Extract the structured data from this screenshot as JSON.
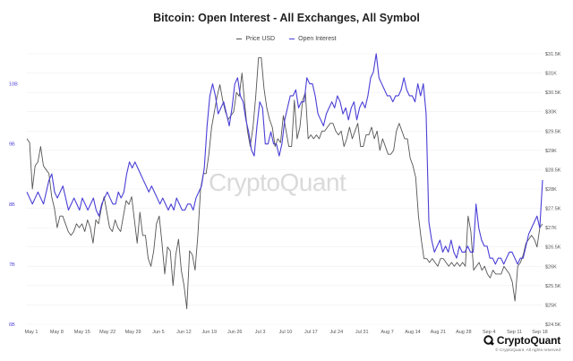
{
  "header": {
    "title": "Bitcoin: Open Interest - All Exchanges, All Symbol"
  },
  "legend": {
    "items": [
      {
        "label": "Price USD",
        "color": "#555555"
      },
      {
        "label": "Open Interest",
        "color": "#4a3fd6"
      }
    ]
  },
  "watermark": "CryptoQuant",
  "brand": {
    "name": "CryptoQuant",
    "copyright": "© CryptoQuant. All rights reserved"
  },
  "chart_data": {
    "type": "line",
    "title": "Bitcoin: Open Interest - All Exchanges, All Symbol",
    "x_ticks": [
      "May 1",
      "May 8",
      "May 15",
      "May 22",
      "May 29",
      "Jun 5",
      "Jun 12",
      "Jun 19",
      "Jun 26",
      "Jul 3",
      "Jul 10",
      "Jul 17",
      "Jul 24",
      "Jul 31",
      "Aug 7",
      "Aug 14",
      "Aug 21",
      "Aug 28",
      "Sep 4",
      "Sep 11",
      "Sep 18"
    ],
    "left_axis": {
      "ticks": [
        "6B",
        "7B",
        "8B",
        "9B",
        "10B"
      ],
      "range": [
        6,
        10.5
      ],
      "color": "#4a3fd6"
    },
    "right_axis": {
      "ticks": [
        "$24.5K",
        "$25K",
        "$25.5K",
        "$26K",
        "$26.5K",
        "$27K",
        "$27.5K",
        "$28K",
        "$28.5K",
        "$29K",
        "$29.5K",
        "$30K",
        "$30.5K",
        "$31K",
        "$31.5K"
      ],
      "range": [
        24.5,
        31.5
      ],
      "color": "#555555"
    },
    "series": [
      {
        "name": "Price USD",
        "axis": "right",
        "color": "#555555",
        "y": [
          29.3,
          29.2,
          28.0,
          28.6,
          28.7,
          29.1,
          28.6,
          28.5,
          28.4,
          27.8,
          27.5,
          27.0,
          27.3,
          27.3,
          27.1,
          26.9,
          26.8,
          26.9,
          27.1,
          27.0,
          27.1,
          26.9,
          27.2,
          27.0,
          26.6,
          27.2,
          27.1,
          27.5,
          27.8,
          27.4,
          27.0,
          26.9,
          27.2,
          27.0,
          26.9,
          27.3,
          27.7,
          27.6,
          27.8,
          27.2,
          26.6,
          27.4,
          26.8,
          26.8,
          26.2,
          26.0,
          26.4,
          27.1,
          27.3,
          26.6,
          25.8,
          26.5,
          26.4,
          25.5,
          26.3,
          26.7,
          25.9,
          25.5,
          24.9,
          26.4,
          26.3,
          25.9,
          26.8,
          28.0,
          28.4,
          28.4,
          28.9,
          29.6,
          30.0,
          30.4,
          30.7,
          30.3,
          30.0,
          29.8,
          29.9,
          30.0,
          30.5,
          30.4,
          31.0,
          30.2,
          29.5,
          29.1,
          29.6,
          30.4,
          31.4,
          31.4,
          30.6,
          30.1,
          29.8,
          29.6,
          29.1,
          29.3,
          29.2,
          29.9,
          29.5,
          29.1,
          29.1,
          30.3,
          29.3,
          29.6,
          30.3,
          30.5,
          29.3,
          29.4,
          29.3,
          29.4,
          29.3,
          29.5,
          29.5,
          29.6,
          29.7,
          29.7,
          29.5,
          29.4,
          29.5,
          29.1,
          29.3,
          29.6,
          29.3,
          29.5,
          29.7,
          29.1,
          29.1,
          29.4,
          29.4,
          29.6,
          29.3,
          29.5,
          29.0,
          29.3,
          29.1,
          28.9,
          28.9,
          29.0,
          29.5,
          29.7,
          29.5,
          29.3,
          29.3,
          28.8,
          28.6,
          28.3,
          27.3,
          26.7,
          26.2,
          26.2,
          26.1,
          26.2,
          26.1,
          26.0,
          26.2,
          26.2,
          26.1,
          26.0,
          26.1,
          26.0,
          26.1,
          26.0,
          26.1,
          26.0,
          27.3,
          26.9,
          25.9,
          26.0,
          26.1,
          25.9,
          26.0,
          25.8,
          25.7,
          25.9,
          25.8,
          25.8,
          25.8,
          26.0,
          25.9,
          25.8,
          25.6,
          25.1,
          26.0,
          26.1,
          26.3,
          26.6,
          26.7,
          26.8,
          26.7,
          26.5,
          27.0,
          27.1
        ]
      },
      {
        "name": "Open Interest",
        "axis": "left",
        "color": "#4a3fd6",
        "y": [
          8.2,
          8.1,
          8.0,
          8.1,
          8.2,
          8.1,
          8.0,
          8.2,
          8.4,
          8.5,
          8.2,
          8.1,
          8.2,
          8.3,
          8.1,
          7.9,
          8.0,
          8.1,
          8.0,
          7.9,
          8.1,
          8.0,
          7.9,
          8.0,
          8.1,
          7.9,
          7.8,
          8.0,
          8.1,
          8.2,
          8.1,
          8.0,
          8.0,
          8.2,
          8.1,
          8.2,
          8.5,
          8.7,
          8.6,
          8.7,
          8.6,
          8.5,
          8.4,
          8.3,
          8.2,
          8.3,
          8.2,
          8.1,
          8.0,
          8.1,
          8.0,
          7.9,
          8.0,
          7.9,
          8.1,
          8.0,
          7.9,
          7.9,
          8.0,
          8.0,
          7.9,
          8.1,
          8.2,
          8.3,
          8.6,
          9.3,
          9.8,
          10.0,
          9.8,
          9.5,
          9.6,
          9.7,
          9.5,
          9.3,
          9.6,
          10.0,
          10.1,
          9.8,
          9.7,
          9.4,
          9.2,
          8.9,
          8.8,
          9.3,
          9.7,
          9.6,
          9.0,
          9.0,
          9.2,
          9.0,
          9.0,
          8.8,
          9.0,
          9.4,
          9.6,
          9.8,
          9.8,
          9.9,
          9.6,
          9.7,
          9.7,
          10.1,
          10.0,
          10.0,
          9.8,
          9.5,
          9.4,
          9.3,
          9.5,
          9.6,
          9.7,
          9.6,
          9.8,
          9.7,
          9.5,
          9.6,
          9.4,
          9.6,
          9.7,
          9.4,
          9.6,
          9.7,
          9.6,
          9.8,
          10.1,
          10.2,
          10.5,
          10.1,
          10.0,
          9.9,
          9.8,
          9.8,
          9.7,
          9.8,
          9.8,
          9.9,
          10.1,
          9.9,
          9.8,
          9.8,
          9.7,
          10.0,
          9.8,
          10.0,
          9.5,
          7.7,
          7.4,
          7.2,
          7.3,
          7.4,
          7.2,
          7.3,
          7.2,
          7.4,
          7.2,
          7.1,
          7.3,
          7.2,
          7.2,
          7.3,
          7.2,
          7.2,
          8.0,
          7.6,
          7.4,
          7.3,
          7.3,
          7.1,
          7.1,
          7.0,
          7.1,
          7.1,
          7.0,
          7.1,
          7.2,
          7.2,
          7.1,
          7.0,
          7.1,
          7.1,
          7.3,
          7.5,
          7.6,
          7.7,
          7.8,
          7.6,
          8.4
        ]
      }
    ],
    "grid": true,
    "legend_position": "top-center"
  }
}
